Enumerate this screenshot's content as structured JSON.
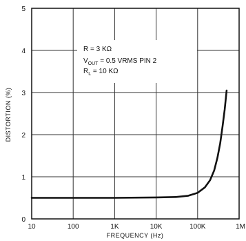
{
  "chart_data": {
    "type": "line",
    "xscale": "log",
    "xlabel": "FREQUENCY (Hz)",
    "ylabel": "DISTORTION (%)",
    "xlim": [
      10,
      1000000
    ],
    "ylim": [
      0,
      5
    ],
    "grid": true,
    "x_ticks": [
      "10",
      "100",
      "1K",
      "10K",
      "100K",
      "1M"
    ],
    "y_ticks": [
      "0",
      "1",
      "2",
      "3",
      "4",
      "5"
    ],
    "annotation": {
      "r": "R = 3 KΩ",
      "vout_main": "V",
      "vout_sub": "OUT",
      "vout_rest": " = 0.5 VRMS PIN 2",
      "rl_main": "R",
      "rl_sub": "L",
      "rl_rest": " = 10 KΩ"
    },
    "series": [
      {
        "x": [
          10,
          100,
          1000,
          10000,
          30000,
          60000,
          100000,
          150000,
          200000,
          250000,
          300000,
          350000,
          400000,
          450000,
          500000
        ],
        "y": [
          0.5,
          0.5,
          0.5,
          0.51,
          0.52,
          0.55,
          0.62,
          0.75,
          0.92,
          1.15,
          1.45,
          1.8,
          2.2,
          2.6,
          3.05
        ]
      }
    ]
  }
}
